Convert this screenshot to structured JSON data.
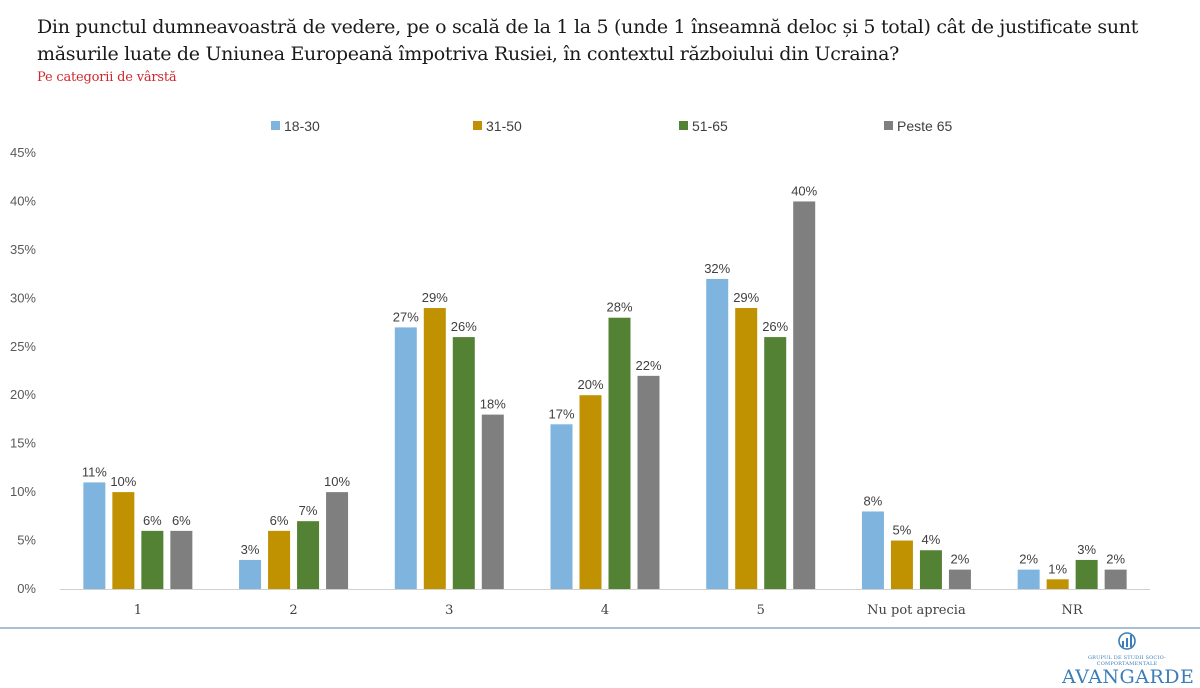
{
  "header": {
    "title": "Din punctul dumneavoastră de vedere, pe o scală de la 1 la 5 (unde 1 înseamnă deloc și 5 total) cât de justificate sunt măsurile luate de Uniunea Europeană împotriva Rusiei, în contextul războiului din Ucraina?",
    "subtitle": "Pe categorii de vârstă"
  },
  "chart_data": {
    "type": "bar",
    "title": "Din punctul dumneavoastră de vedere, pe o scală de la 1 la 5 (unde 1 înseamnă deloc și 5 total) cât de justificate sunt măsurile luate de Uniunea Europeană împotriva Rusiei, în contextul războiului din Ucraina?",
    "subtitle": "Pe categorii de vârstă",
    "xlabel": "",
    "ylabel": "",
    "categories": [
      "1",
      "2",
      "3",
      "4",
      "5",
      "Nu pot aprecia",
      "NR"
    ],
    "series": [
      {
        "name": "18-30",
        "color": "#7eb4de",
        "values": [
          11,
          3,
          27,
          17,
          32,
          8,
          2
        ]
      },
      {
        "name": "31-50",
        "color": "#c09100",
        "values": [
          10,
          6,
          29,
          20,
          29,
          5,
          1
        ]
      },
      {
        "name": "51-65",
        "color": "#548235",
        "values": [
          6,
          7,
          26,
          28,
          26,
          4,
          3
        ]
      },
      {
        "name": "Peste 65",
        "color": "#7f7f7f",
        "values": [
          6,
          10,
          18,
          22,
          40,
          2,
          2
        ]
      }
    ],
    "ylim": [
      0,
      45
    ],
    "yticks": [
      0,
      5,
      10,
      15,
      20,
      25,
      30,
      35,
      40,
      45
    ],
    "ytick_format": "percent",
    "grid": false,
    "legend_position": "top",
    "data_labels": true
  },
  "branding": {
    "logo_tagline": "GRUPUL DE STUDII SOCIO-COMPORTAMENTALE",
    "logo_name": "AVANGARDE",
    "logo_icon": "chart-figure-icon",
    "accent_color": "#3a7db8"
  }
}
